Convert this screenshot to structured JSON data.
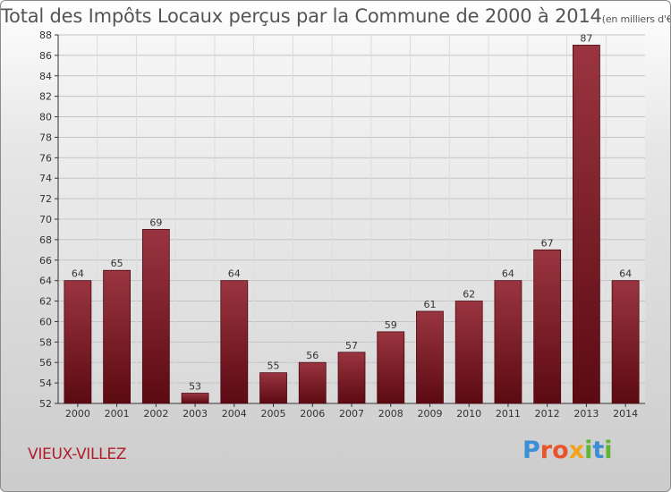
{
  "title": "Total des Impôts Locaux perçus par la Commune de 2000 à 2014",
  "title_unit": "(en milliers d'€)",
  "commune": "VIEUX-VILLEZ",
  "logo": "Proxiti",
  "colors": {
    "bar": "#7a1520",
    "bar_light": "#9a3540",
    "title": "#555555",
    "commune": "#b01e2a"
  },
  "chart_data": {
    "type": "bar",
    "title": "Total des Impôts Locaux perçus par la Commune de 2000 à 2014",
    "categories": [
      "2000",
      "2001",
      "2002",
      "2003",
      "2004",
      "2005",
      "2006",
      "2007",
      "2008",
      "2009",
      "2010",
      "2011",
      "2012",
      "2013",
      "2014"
    ],
    "values": [
      64,
      65,
      69,
      53,
      64,
      55,
      56,
      57,
      59,
      61,
      62,
      64,
      67,
      87,
      64
    ],
    "ylim": [
      52,
      88
    ],
    "yticks": [
      52,
      54,
      56,
      58,
      60,
      62,
      64,
      66,
      68,
      70,
      72,
      74,
      76,
      78,
      80,
      82,
      84,
      86,
      88
    ],
    "grid": true,
    "xlabel": "",
    "ylabel": ""
  }
}
